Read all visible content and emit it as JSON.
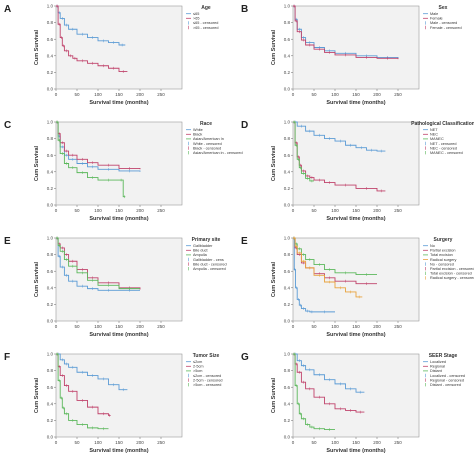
{
  "figure": {
    "panel_letters": [
      "A",
      "B",
      "C",
      "D",
      "E",
      "E",
      "F",
      "G"
    ]
  },
  "chart_data": [
    {
      "panel": "A",
      "type": "line",
      "step": true,
      "xlabel": "Survival time (months)",
      "ylabel": "Cum Survival",
      "xlim": [
        0,
        300
      ],
      "ylim": [
        0,
        1
      ],
      "xticks": [
        0,
        50,
        100,
        150,
        200,
        250
      ],
      "yticks": [
        0,
        0.2,
        0.4,
        0.6,
        0.8,
        1.0
      ],
      "legend": {
        "title": "Age",
        "position": "top-right",
        "entries": [
          "≤65",
          ">65",
          "≤65 - censored",
          ">65 - censored"
        ]
      },
      "series": [
        {
          "color": "#5b9bd5",
          "x": [
            0,
            5,
            10,
            20,
            30,
            50,
            75,
            100,
            125,
            150,
            165
          ],
          "y": [
            1.0,
            0.92,
            0.85,
            0.77,
            0.72,
            0.66,
            0.62,
            0.58,
            0.56,
            0.53,
            0.53
          ]
        },
        {
          "color": "#c0436b",
          "x": [
            0,
            5,
            10,
            15,
            20,
            30,
            40,
            50,
            75,
            100,
            125,
            150,
            170
          ],
          "y": [
            1.0,
            0.78,
            0.62,
            0.52,
            0.46,
            0.4,
            0.37,
            0.34,
            0.31,
            0.28,
            0.25,
            0.21,
            0.21
          ]
        }
      ]
    },
    {
      "panel": "B",
      "type": "line",
      "step": true,
      "xlabel": "Survival time (months)",
      "ylabel": "Cum Survival",
      "xlim": [
        0,
        300
      ],
      "ylim": [
        0,
        1
      ],
      "xticks": [
        0,
        50,
        100,
        150,
        200,
        250
      ],
      "yticks": [
        0,
        0.2,
        0.4,
        0.6,
        0.8,
        1.0
      ],
      "legend": {
        "title": "Sex",
        "position": "top-right",
        "entries": [
          "Male",
          "Female",
          "Male - censored",
          "Female - censored"
        ]
      },
      "series": [
        {
          "color": "#5b9bd5",
          "x": [
            0,
            5,
            10,
            20,
            30,
            50,
            75,
            100,
            150,
            200,
            250
          ],
          "y": [
            1.0,
            0.84,
            0.72,
            0.62,
            0.56,
            0.5,
            0.46,
            0.43,
            0.4,
            0.38,
            0.37
          ]
        },
        {
          "color": "#c0436b",
          "x": [
            0,
            5,
            10,
            20,
            30,
            50,
            75,
            100,
            150,
            200,
            250
          ],
          "y": [
            1.0,
            0.82,
            0.69,
            0.59,
            0.53,
            0.48,
            0.44,
            0.41,
            0.38,
            0.37,
            0.36
          ]
        }
      ]
    },
    {
      "panel": "C",
      "type": "line",
      "step": true,
      "xlabel": "Survival time (months)",
      "ylabel": "Cum Survival",
      "xlim": [
        0,
        300
      ],
      "ylim": [
        0,
        1
      ],
      "xticks": [
        0,
        50,
        100,
        150,
        200,
        250
      ],
      "yticks": [
        0,
        0.2,
        0.4,
        0.6,
        0.8,
        1.0
      ],
      "legend": {
        "title": "Race",
        "position": "top-right",
        "entries": [
          "White",
          "Black",
          "Asian/American In",
          "White - censored",
          "Black - censored",
          "Asian/American in - censored"
        ]
      },
      "series": [
        {
          "color": "#5b9bd5",
          "x": [
            0,
            5,
            10,
            20,
            30,
            50,
            75,
            100,
            150,
            200
          ],
          "y": [
            1.0,
            0.83,
            0.7,
            0.6,
            0.55,
            0.5,
            0.46,
            0.43,
            0.41,
            0.4
          ]
        },
        {
          "color": "#c0436b",
          "x": [
            0,
            5,
            10,
            20,
            30,
            50,
            75,
            100,
            150,
            200
          ],
          "y": [
            1.0,
            0.86,
            0.75,
            0.65,
            0.6,
            0.55,
            0.51,
            0.48,
            0.44,
            0.43
          ]
        },
        {
          "color": "#5cb85c",
          "x": [
            0,
            5,
            10,
            20,
            30,
            50,
            75,
            100,
            150,
            160,
            165
          ],
          "y": [
            1.0,
            0.78,
            0.62,
            0.5,
            0.45,
            0.39,
            0.33,
            0.3,
            0.3,
            0.1,
            0.1
          ]
        }
      ]
    },
    {
      "panel": "D",
      "type": "line",
      "step": true,
      "xlabel": "Survival time (months)",
      "ylabel": "Cum Survival",
      "xlim": [
        0,
        300
      ],
      "ylim": [
        0,
        1
      ],
      "xticks": [
        0,
        50,
        100,
        150,
        200,
        250
      ],
      "yticks": [
        0,
        0.2,
        0.4,
        0.6,
        0.8,
        1.0
      ],
      "legend": {
        "title": "Pathological Classification",
        "position": "top-right",
        "entries": [
          "NET",
          "NEC",
          "MANEC",
          "NET - censored",
          "NEC - censored",
          "MANEC - censored"
        ]
      },
      "series": [
        {
          "color": "#5b9bd5",
          "x": [
            0,
            10,
            30,
            50,
            75,
            100,
            125,
            150,
            175,
            200,
            220
          ],
          "y": [
            1.0,
            0.95,
            0.89,
            0.84,
            0.8,
            0.77,
            0.72,
            0.69,
            0.66,
            0.65,
            0.65
          ]
        },
        {
          "color": "#c0436b",
          "x": [
            0,
            5,
            10,
            15,
            20,
            30,
            40,
            50,
            75,
            100,
            150,
            200,
            220
          ],
          "y": [
            1.0,
            0.75,
            0.58,
            0.48,
            0.41,
            0.35,
            0.33,
            0.3,
            0.27,
            0.24,
            0.2,
            0.17,
            0.17
          ]
        },
        {
          "color": "#5cb85c",
          "x": [
            0,
            5,
            10,
            15,
            20,
            30,
            40,
            50
          ],
          "y": [
            1.0,
            0.72,
            0.55,
            0.45,
            0.38,
            0.32,
            0.29,
            0.29
          ]
        }
      ]
    },
    {
      "panel": "E",
      "type": "line",
      "step": true,
      "xlabel": "Survival time (months)",
      "ylabel": "Cum Survival",
      "xlim": [
        0,
        300
      ],
      "ylim": [
        0,
        1
      ],
      "xticks": [
        0,
        50,
        100,
        150,
        200,
        250
      ],
      "yticks": [
        0,
        0.2,
        0.4,
        0.6,
        0.8,
        1.0
      ],
      "legend": {
        "title": "Primary site",
        "position": "top-right",
        "entries": [
          "Gallbladder",
          "Bile duct",
          "Ampulla",
          "Gallbladder - cens",
          "Bile duct - censored",
          "Ampulla - censored"
        ]
      },
      "series": [
        {
          "color": "#5b9bd5",
          "x": [
            0,
            5,
            10,
            20,
            30,
            50,
            75,
            100,
            150,
            200
          ],
          "y": [
            1.0,
            0.78,
            0.65,
            0.55,
            0.48,
            0.42,
            0.39,
            0.37,
            0.37,
            0.37
          ]
        },
        {
          "color": "#c0436b",
          "x": [
            0,
            5,
            10,
            20,
            30,
            50,
            75,
            100,
            150,
            200
          ],
          "y": [
            1.0,
            0.93,
            0.88,
            0.8,
            0.72,
            0.62,
            0.52,
            0.46,
            0.4,
            0.38
          ]
        },
        {
          "color": "#5cb85c",
          "x": [
            0,
            5,
            10,
            20,
            30,
            50,
            75,
            100,
            150,
            200
          ],
          "y": [
            1.0,
            0.91,
            0.84,
            0.74,
            0.66,
            0.58,
            0.49,
            0.43,
            0.39,
            0.39
          ]
        }
      ]
    },
    {
      "panel": "E",
      "type": "line",
      "step": true,
      "xlabel": "Survival time (months)",
      "ylabel": "Cum Survival",
      "xlim": [
        0,
        300
      ],
      "ylim": [
        0,
        1
      ],
      "xticks": [
        0,
        50,
        100,
        150,
        200,
        250
      ],
      "yticks": [
        0,
        0.2,
        0.4,
        0.6,
        0.8,
        1.0
      ],
      "legend": {
        "title": "Surgery",
        "position": "top-right",
        "entries": [
          "No",
          "Partial excision",
          "Total excision",
          "Radical surgery",
          "No - censored",
          "Partial excision - censored",
          "Total excision - censored",
          "Radical surgery - censored"
        ]
      },
      "series": [
        {
          "color": "#5b9bd5",
          "x": [
            0,
            3,
            6,
            10,
            15,
            20,
            30,
            40,
            50,
            100
          ],
          "y": [
            1.0,
            0.62,
            0.4,
            0.26,
            0.19,
            0.15,
            0.12,
            0.11,
            0.11,
            0.11
          ]
        },
        {
          "color": "#c0436b",
          "x": [
            0,
            5,
            10,
            20,
            30,
            50,
            75,
            100,
            150,
            200
          ],
          "y": [
            1.0,
            0.88,
            0.8,
            0.7,
            0.64,
            0.57,
            0.52,
            0.48,
            0.45,
            0.45
          ]
        },
        {
          "color": "#5cb85c",
          "x": [
            0,
            5,
            10,
            20,
            30,
            50,
            75,
            100,
            150,
            200
          ],
          "y": [
            1.0,
            0.93,
            0.87,
            0.8,
            0.74,
            0.68,
            0.62,
            0.58,
            0.56,
            0.56
          ]
        },
        {
          "color": "#e8a33d",
          "x": [
            0,
            5,
            10,
            20,
            30,
            50,
            75,
            100,
            125,
            150,
            165
          ],
          "y": [
            1.0,
            0.9,
            0.82,
            0.72,
            0.64,
            0.55,
            0.47,
            0.4,
            0.35,
            0.29,
            0.29
          ]
        }
      ]
    },
    {
      "panel": "F",
      "type": "line",
      "step": true,
      "xlabel": "Survival time (months)",
      "ylabel": "Cum Survival",
      "xlim": [
        0,
        300
      ],
      "ylim": [
        0,
        1
      ],
      "xticks": [
        0,
        50,
        100,
        150,
        200,
        250
      ],
      "yticks": [
        0,
        0.2,
        0.4,
        0.6,
        0.8,
        1.0
      ],
      "legend": {
        "title": "Tumor Size",
        "position": "top-right",
        "entries": [
          "≤2cm",
          "2-5cm",
          ">5cm",
          "≤2cm - censored",
          "2-5cm - censored",
          ">5cm - censored"
        ]
      },
      "series": [
        {
          "color": "#5b9bd5",
          "x": [
            0,
            10,
            20,
            30,
            50,
            75,
            100,
            125,
            150,
            170
          ],
          "y": [
            1.0,
            0.93,
            0.88,
            0.84,
            0.78,
            0.74,
            0.7,
            0.63,
            0.57,
            0.57
          ]
        },
        {
          "color": "#c0436b",
          "x": [
            0,
            5,
            10,
            20,
            30,
            50,
            75,
            100,
            125,
            130
          ],
          "y": [
            1.0,
            0.85,
            0.74,
            0.62,
            0.55,
            0.44,
            0.36,
            0.28,
            0.26,
            0.26
          ]
        },
        {
          "color": "#5cb85c",
          "x": [
            0,
            5,
            10,
            15,
            20,
            30,
            50,
            75,
            100,
            125
          ],
          "y": [
            1.0,
            0.68,
            0.47,
            0.35,
            0.28,
            0.2,
            0.15,
            0.11,
            0.1,
            0.1
          ]
        }
      ]
    },
    {
      "panel": "G",
      "type": "line",
      "step": true,
      "xlabel": "Survival time (months)",
      "ylabel": "Cum Survival",
      "xlim": [
        0,
        300
      ],
      "ylim": [
        0,
        1
      ],
      "xticks": [
        0,
        50,
        100,
        150,
        200,
        250
      ],
      "yticks": [
        0,
        0.2,
        0.4,
        0.6,
        0.8,
        1.0
      ],
      "legend": {
        "title": "SEER Stage",
        "position": "top-right",
        "entries": [
          "Localized",
          "Regional",
          "Distant",
          "Localized - censored",
          "Regional - censored",
          "Distant - censored"
        ]
      },
      "series": [
        {
          "color": "#5b9bd5",
          "x": [
            0,
            10,
            20,
            30,
            50,
            75,
            100,
            125,
            150,
            170
          ],
          "y": [
            1.0,
            0.92,
            0.86,
            0.81,
            0.75,
            0.69,
            0.64,
            0.58,
            0.54,
            0.54
          ]
        },
        {
          "color": "#c0436b",
          "x": [
            0,
            5,
            10,
            20,
            30,
            50,
            75,
            100,
            125,
            150,
            170
          ],
          "y": [
            1.0,
            0.88,
            0.78,
            0.66,
            0.58,
            0.48,
            0.4,
            0.34,
            0.32,
            0.3,
            0.3
          ]
        },
        {
          "color": "#5cb85c",
          "x": [
            0,
            5,
            10,
            15,
            20,
            30,
            40,
            50,
            75,
            100
          ],
          "y": [
            1.0,
            0.62,
            0.4,
            0.28,
            0.22,
            0.15,
            0.12,
            0.1,
            0.09,
            0.09
          ]
        }
      ]
    }
  ]
}
